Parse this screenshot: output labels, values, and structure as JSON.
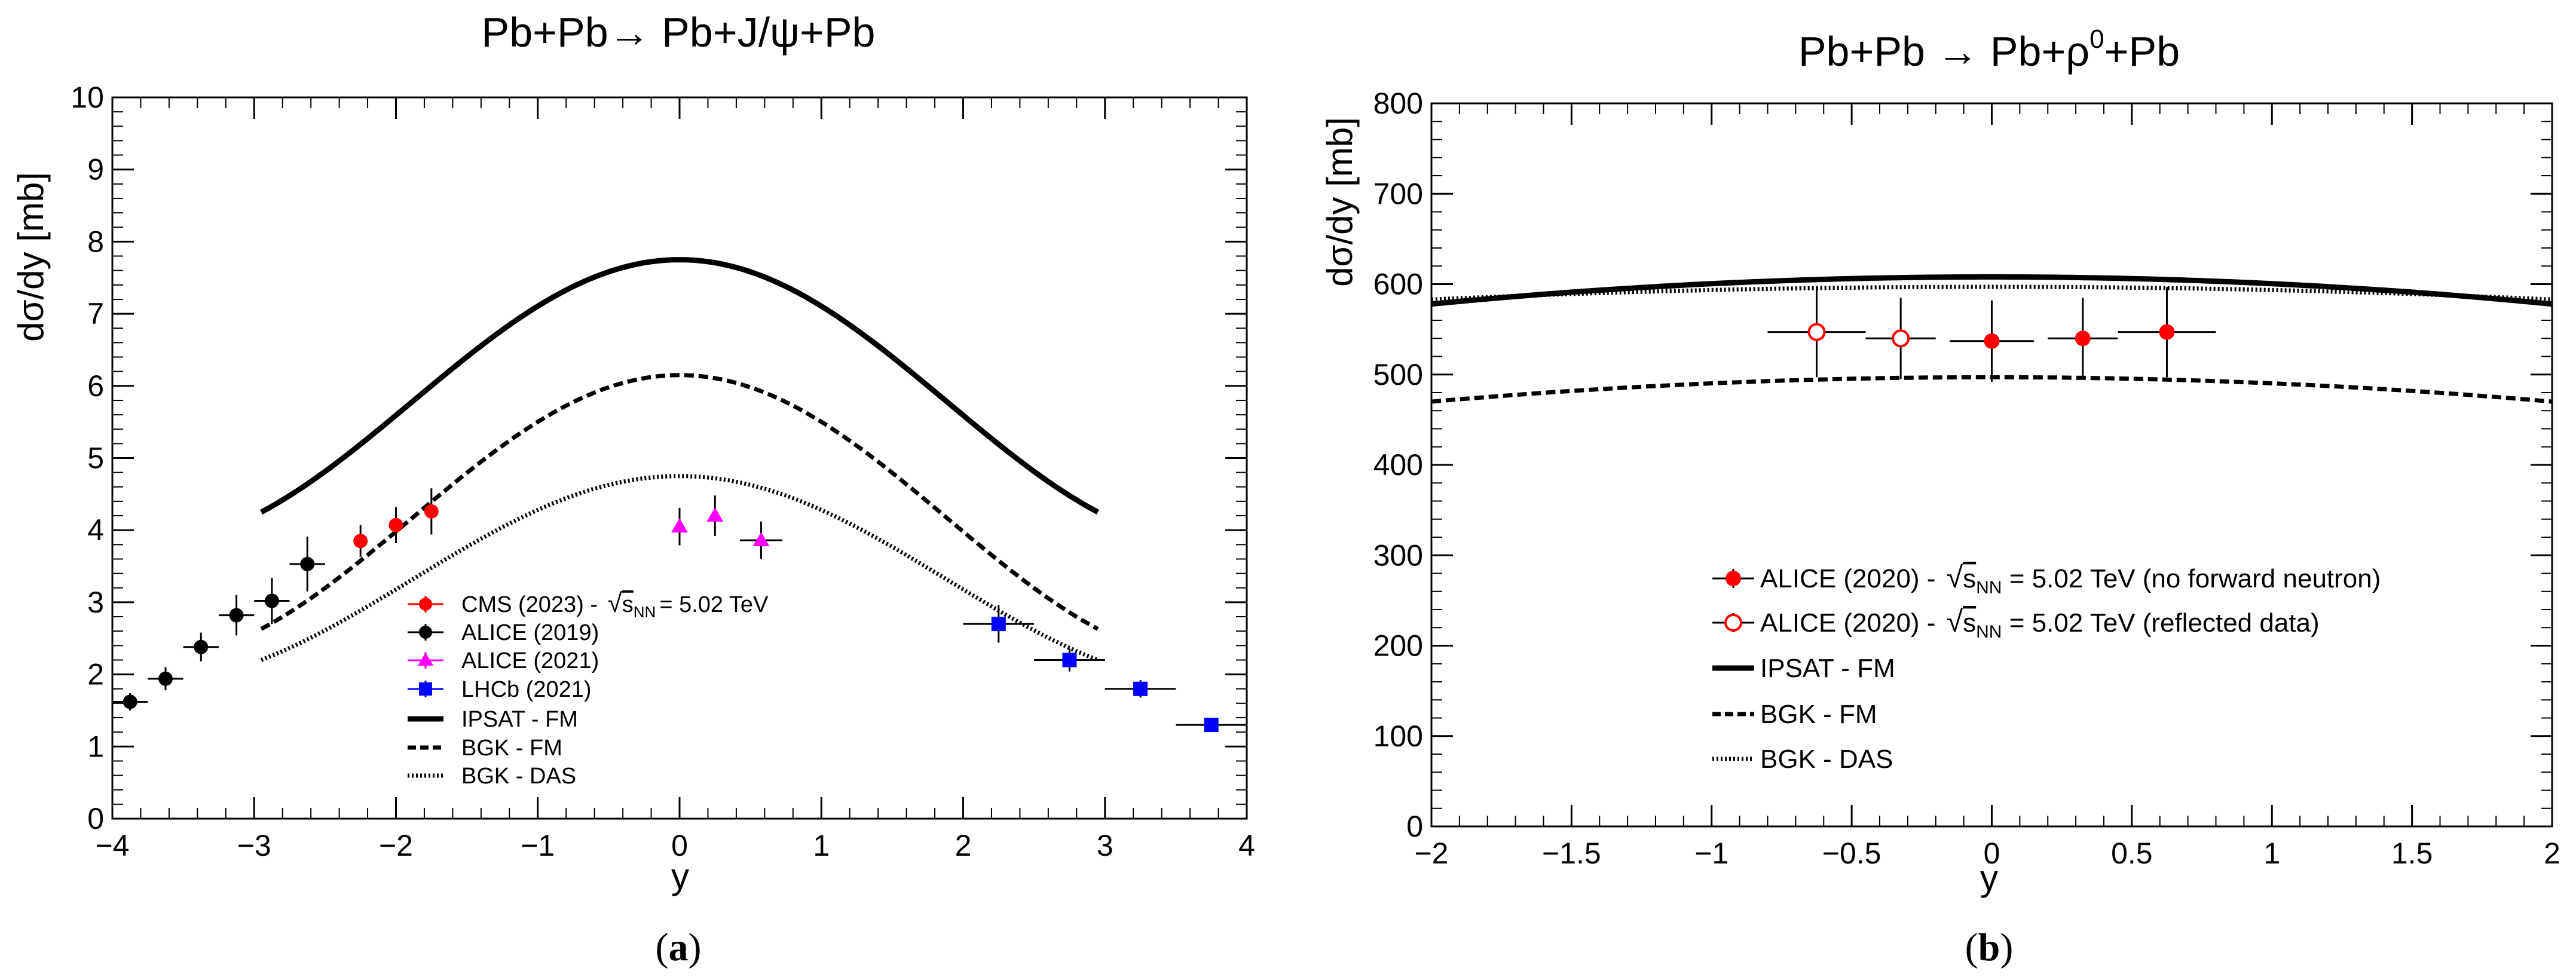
{
  "chart_data": [
    {
      "type": "scatter",
      "title": "Pb+Pb→ Pb+J/ψ+Pb",
      "xlabel": "y",
      "ylabel": "dσ/dy [mb]",
      "xlim": [
        -4,
        4
      ],
      "ylim": [
        0,
        10
      ],
      "xticks": [
        "−4",
        "−3",
        "−2",
        "−1",
        "0",
        "1",
        "2",
        "3",
        "4"
      ],
      "yticks": [
        "0",
        "1",
        "2",
        "3",
        "4",
        "5",
        "6",
        "7",
        "8",
        "9",
        "10"
      ],
      "caption": "(a)",
      "legend_energy": "= 5.02 TeV",
      "points": [
        {
          "name": "CMS (2023) - ",
          "color": "#ff0000",
          "marker": "circle",
          "x": [
            -2.25,
            -2.0,
            -1.75
          ],
          "y": [
            3.85,
            4.07,
            4.26
          ],
          "xerr": [
            0.0,
            0.0,
            0.0
          ],
          "yerr": [
            0.22,
            0.25,
            0.32
          ]
        },
        {
          "name": "ALICE (2019)",
          "color": "#000000",
          "marker": "circle",
          "x": [
            -3.875,
            -3.625,
            -3.375,
            -3.125,
            -2.875,
            -2.625
          ],
          "y": [
            1.62,
            1.94,
            2.38,
            2.82,
            3.02,
            3.53
          ],
          "xerr": [
            0.125,
            0.125,
            0.125,
            0.125,
            0.125,
            0.125
          ],
          "yerr": [
            0.12,
            0.16,
            0.2,
            0.28,
            0.32,
            0.38
          ]
        },
        {
          "name": "ALICE (2021)",
          "color": "#ff00ff",
          "marker": "triangle",
          "x": [
            0.0,
            0.25,
            0.575
          ],
          "y": [
            4.05,
            4.2,
            3.86
          ],
          "xerr": [
            0.0,
            0.0,
            0.15
          ],
          "yerr": [
            0.26,
            0.28,
            0.26
          ]
        },
        {
          "name": "LHCb (2021)",
          "color": "#0000ff",
          "marker": "square",
          "x": [
            2.25,
            2.75,
            3.25,
            3.75
          ],
          "y": [
            2.7,
            2.2,
            1.8,
            1.3
          ],
          "xerr": [
            0.25,
            0.25,
            0.25,
            0.25
          ],
          "yerr": [
            0.26,
            0.16,
            0.12,
            0.08
          ]
        }
      ],
      "curves": [
        {
          "name": "IPSAT -  FM",
          "style": "solid",
          "peak": 7.75,
          "end": 4.25,
          "xrange": [
            -2.95,
            2.95
          ]
        },
        {
          "name": "BGK - FM",
          "style": "dashed",
          "peak": 6.15,
          "end": 2.63,
          "xrange": [
            -2.95,
            2.95
          ]
        },
        {
          "name": "BGK - DAS",
          "style": "dotted",
          "peak": 4.75,
          "end": 2.2,
          "xrange": [
            -2.95,
            2.95
          ]
        }
      ]
    },
    {
      "type": "scatter",
      "title": "Pb+Pb  → Pb+ρ",
      "title_sup": "0",
      "title_end": "+Pb",
      "xlabel": "y",
      "ylabel": "dσ/dy [mb]",
      "xlim": [
        -2,
        2
      ],
      "ylim": [
        0,
        800
      ],
      "xticks": [
        "−2",
        "−1.5",
        "−1",
        "−0.5",
        "0",
        "0.5",
        "1",
        "1.5",
        "2"
      ],
      "yticks": [
        "0",
        "100",
        "200",
        "300",
        "400",
        "500",
        "600",
        "700",
        "800"
      ],
      "caption": "(b)",
      "points": [
        {
          "name": "ALICE (2020) - ",
          "suffix": " = 5.02 TeV (no forward neutron)",
          "color": "#ff0000",
          "marker": "circle",
          "x": [
            0.0,
            0.325,
            0.625
          ],
          "y": [
            537,
            540,
            547
          ],
          "xerr": [
            0.15,
            0.125,
            0.175
          ],
          "yerr": [
            45,
            45,
            50
          ]
        },
        {
          "name": "ALICE (2020) - ",
          "suffix": " = 5.02 TeV (reflected data)",
          "color": "#ff0000",
          "marker": "open-circle",
          "x": [
            -0.625,
            -0.325
          ],
          "y": [
            547,
            540
          ],
          "xerr": [
            0.175,
            0.125
          ],
          "yerr": [
            50,
            45
          ]
        }
      ],
      "curves": [
        {
          "name": "IPSAT - FM",
          "style": "solid",
          "peak": 608,
          "end": 578,
          "xrange": [
            -2,
            2
          ]
        },
        {
          "name": "BGK - FM",
          "style": "dashed",
          "peak": 497,
          "end": 470,
          "xrange": [
            -2,
            2
          ]
        },
        {
          "name": "BGK - DAS",
          "style": "dotted",
          "peak": 597,
          "end": 583,
          "xrange": [
            -2,
            2
          ]
        }
      ]
    }
  ]
}
